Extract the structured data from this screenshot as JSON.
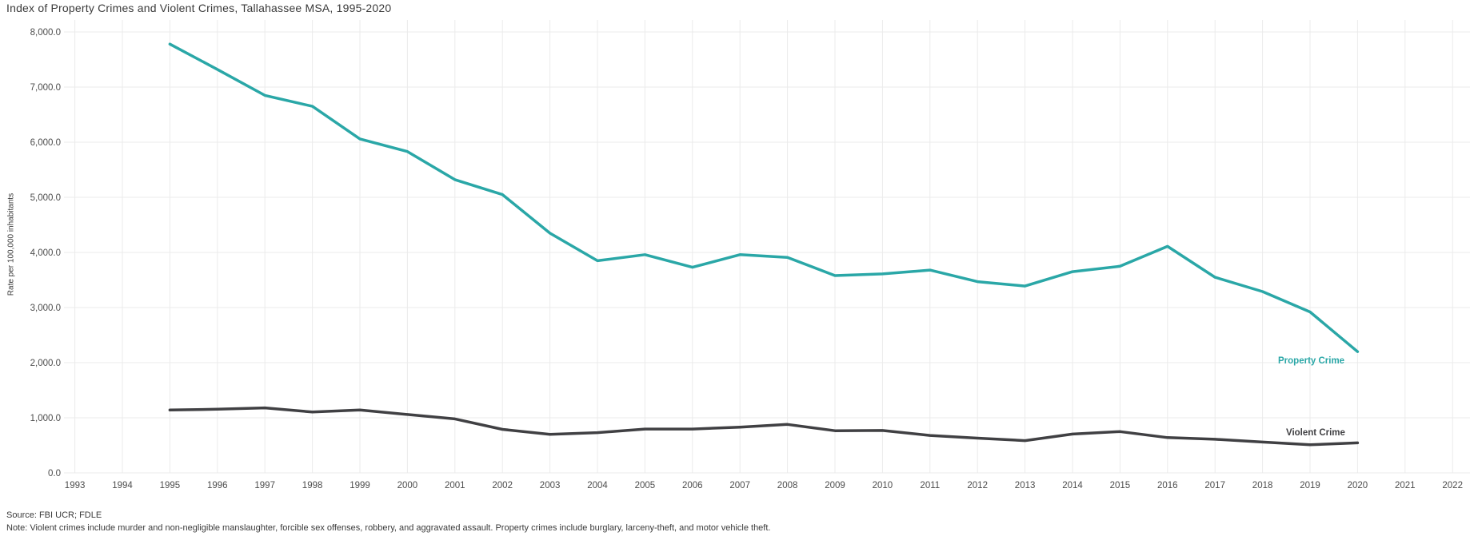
{
  "title": "Index of Property Crimes and Violent Crimes, Tallahassee MSA, 1995-2020",
  "footer": {
    "source": "Source: FBI UCR; FDLE",
    "note": "Note: Violent crimes include murder and non-negligible manslaughter, forcible sex offenses, robbery, and aggravated assault. Property crimes include burglary, larceny-theft, and motor vehicle theft."
  },
  "colors": {
    "property_crime": "#2AA7A7",
    "violent_crime": "#404043",
    "gridline": "#ebebeb",
    "tick_text": "#4d4d4d"
  },
  "chart_data": {
    "type": "line",
    "title": "Index of Property Crimes and Violent Crimes, Tallahassee MSA, 1995-2020",
    "xlabel": "",
    "ylabel": "Rate per 100,000 inhabitants",
    "xlim": [
      1993,
      2022
    ],
    "ylim": [
      0,
      8000
    ],
    "grid": true,
    "legend_position": "end-of-line labels",
    "x_ticks": [
      1993,
      1994,
      1995,
      1996,
      1997,
      1998,
      1999,
      2000,
      2001,
      2002,
      2003,
      2004,
      2005,
      2006,
      2007,
      2008,
      2009,
      2010,
      2011,
      2012,
      2013,
      2014,
      2015,
      2016,
      2017,
      2018,
      2019,
      2020,
      2021,
      2022
    ],
    "y_ticks": [
      {
        "value": 0,
        "label": "0.0"
      },
      {
        "value": 1000,
        "label": "1,000.0"
      },
      {
        "value": 2000,
        "label": "2,000.0"
      },
      {
        "value": 3000,
        "label": "3,000.0"
      },
      {
        "value": 4000,
        "label": "4,000.0"
      },
      {
        "value": 5000,
        "label": "5,000.0"
      },
      {
        "value": 6000,
        "label": "6,000.0"
      },
      {
        "value": 7000,
        "label": "7,000.0"
      },
      {
        "value": 8000,
        "label": "8,000.0"
      }
    ],
    "x": [
      1995,
      1996,
      1997,
      1998,
      1999,
      2000,
      2001,
      2002,
      2003,
      2004,
      2005,
      2006,
      2007,
      2008,
      2009,
      2010,
      2011,
      2012,
      2013,
      2014,
      2015,
      2016,
      2017,
      2018,
      2019,
      2020
    ],
    "series": [
      {
        "name": "Property Crime",
        "color": "#2AA7A7",
        "values": [
          7780,
          7320,
          6850,
          6650,
          6060,
          5830,
          5320,
          5050,
          4350,
          3850,
          3960,
          3730,
          3960,
          3910,
          3580,
          3610,
          3680,
          3470,
          3390,
          3650,
          3750,
          4110,
          3550,
          3290,
          2920,
          2200
        ]
      },
      {
        "name": "Violent Crime",
        "color": "#404043",
        "values": [
          1140,
          1155,
          1180,
          1105,
          1140,
          1060,
          980,
          790,
          700,
          730,
          795,
          795,
          830,
          880,
          765,
          770,
          680,
          630,
          585,
          705,
          750,
          640,
          610,
          560,
          510,
          545
        ]
      }
    ]
  }
}
